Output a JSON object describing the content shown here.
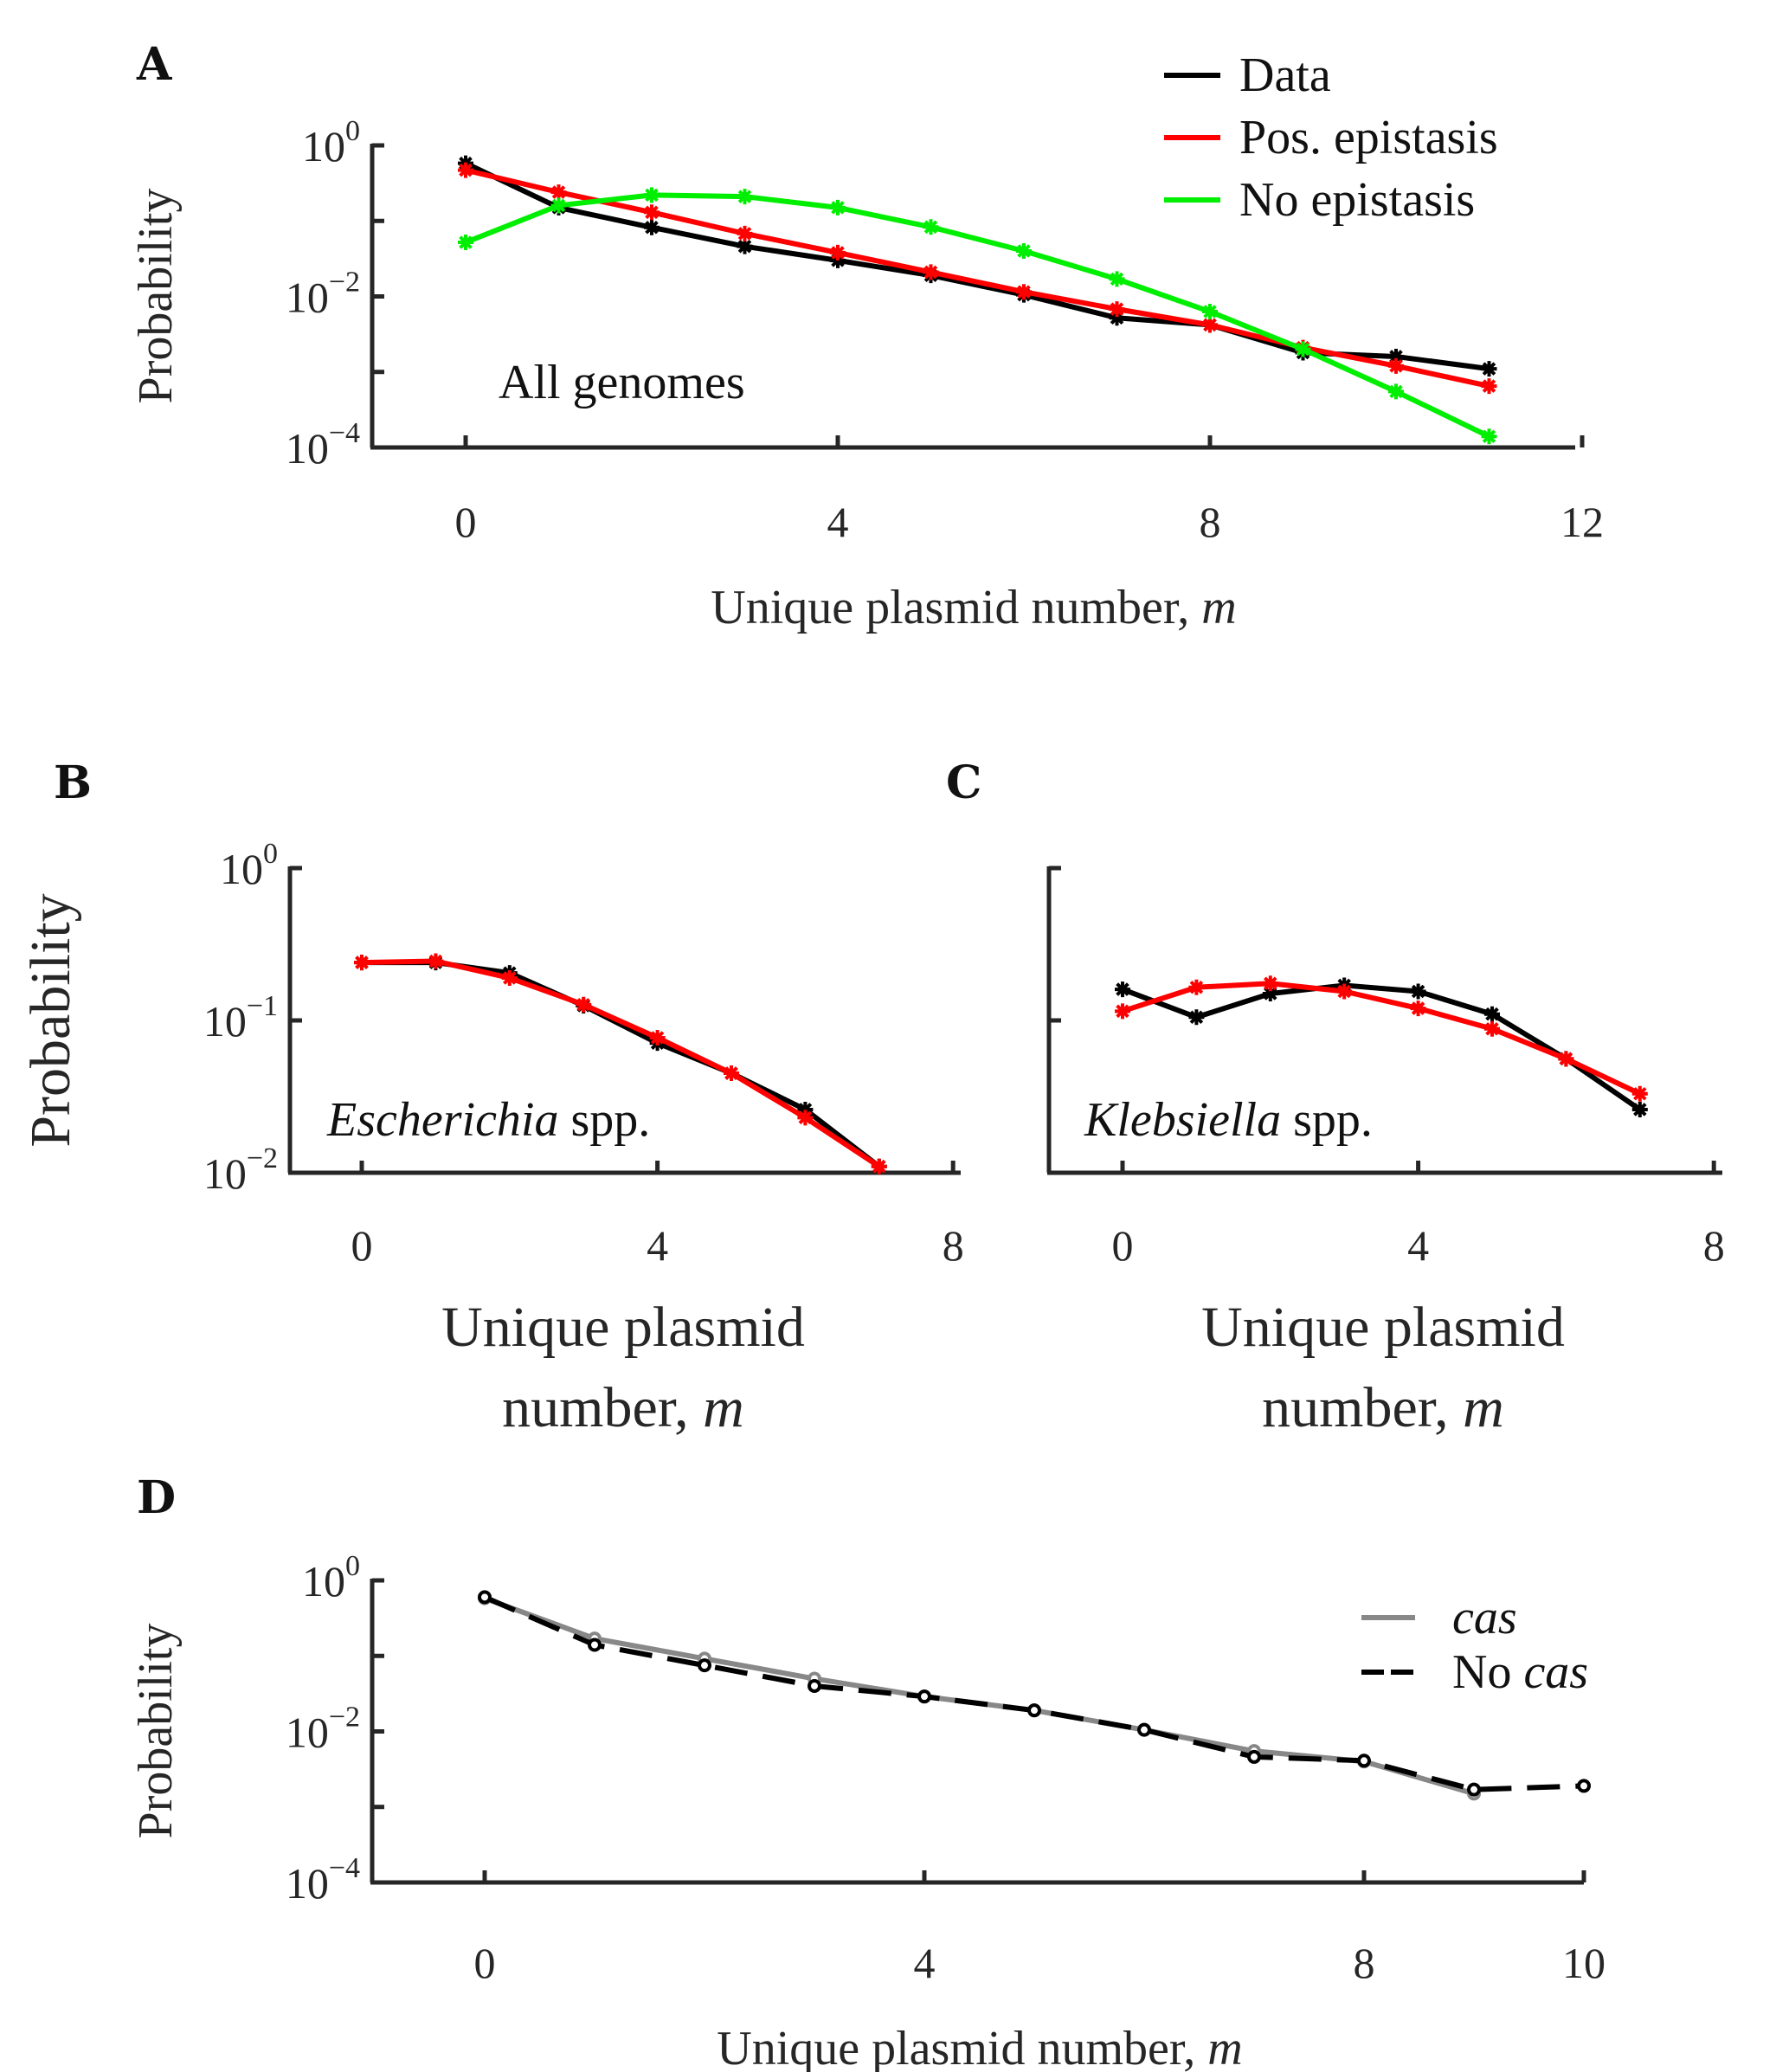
{
  "chart_data": [
    {
      "panel": "A",
      "type": "line",
      "yscale": "log",
      "ylim": [
        0.0001,
        1
      ],
      "xlim": [
        -1,
        12
      ],
      "xticks": [
        "0",
        "4",
        "8",
        "12"
      ],
      "yticks": [
        {
          "base": "10",
          "exp": "0"
        },
        {
          "base": "10",
          "exp": "−2"
        },
        {
          "base": "10",
          "exp": "−4"
        }
      ],
      "xlabel": "Unique plasmid number, ",
      "xlabel_var": "m",
      "ylabel": "Probability",
      "annotation": "All genomes",
      "legend_position": "top-right",
      "legend": [
        "Data",
        "Pos. epistasis",
        "No epistasis"
      ],
      "x": [
        0,
        1,
        2,
        3,
        4,
        5,
        6,
        7,
        8,
        9,
        10,
        11
      ],
      "series": [
        {
          "name": "Data",
          "color": "#000000",
          "values": [
            0.58,
            0.15,
            0.082,
            0.046,
            0.03,
            0.019,
            0.0105,
            0.0052,
            0.0042,
            0.0018,
            0.0016,
            0.0011
          ]
        },
        {
          "name": "Pos. epistasis",
          "color": "#ff0000",
          "values": [
            0.47,
            0.24,
            0.13,
            0.068,
            0.038,
            0.021,
            0.0115,
            0.0068,
            0.0042,
            0.0021,
            0.0012,
            0.00065
          ]
        },
        {
          "name": "No epistasis",
          "color": "#00ee00",
          "values": [
            0.052,
            0.16,
            0.22,
            0.21,
            0.15,
            0.083,
            0.04,
            0.017,
            0.0063,
            0.002,
            0.00055,
            0.00014
          ]
        }
      ]
    },
    {
      "panel": "B",
      "type": "line",
      "yscale": "log",
      "ylim": [
        0.01,
        1
      ],
      "xlim": [
        -1,
        8
      ],
      "xticks": [
        "0",
        "4",
        "8"
      ],
      "yticks": [
        {
          "base": "10",
          "exp": "0"
        },
        {
          "base": "10",
          "exp": "−1"
        },
        {
          "base": "10",
          "exp": "−2"
        }
      ],
      "xlabel_line1": "Unique plasmid",
      "xlabel_line2": "number, ",
      "xlabel_var": "m",
      "ylabel": "Probability",
      "annotation_italic": "Escherichia",
      "annotation_rest": " spp.",
      "x": [
        0,
        1,
        2,
        3,
        4,
        5,
        6,
        7
      ],
      "series": [
        {
          "color": "#000000",
          "values": [
            0.24,
            0.24,
            0.205,
            0.125,
            0.071,
            0.045,
            0.026,
            0.011
          ]
        },
        {
          "color": "#ff0000",
          "values": [
            0.24,
            0.245,
            0.19,
            0.127,
            0.077,
            0.045,
            0.023,
            0.011
          ]
        }
      ]
    },
    {
      "panel": "C",
      "type": "line",
      "yscale": "log",
      "ylim": [
        0.01,
        1
      ],
      "xlim": [
        -1,
        8
      ],
      "xticks": [
        "0",
        "4",
        "8"
      ],
      "xlabel_line1": "Unique plasmid",
      "xlabel_line2": "number, ",
      "xlabel_var": "m",
      "annotation_italic": "Klebsiella",
      "annotation_rest": " spp.",
      "x": [
        0,
        1,
        2,
        3,
        4,
        5,
        6,
        7
      ],
      "series": [
        {
          "color": "#000000",
          "values": [
            0.16,
            0.105,
            0.15,
            0.17,
            0.155,
            0.11,
            0.056,
            0.026
          ]
        },
        {
          "color": "#ff0000",
          "values": [
            0.115,
            0.165,
            0.175,
            0.155,
            0.12,
            0.088,
            0.056,
            0.033
          ]
        }
      ]
    },
    {
      "panel": "D",
      "type": "line",
      "yscale": "log",
      "ylim": [
        0.0001,
        1
      ],
      "xlim": [
        -1,
        10
      ],
      "xticks": [
        "0",
        "4",
        "8",
        "10"
      ],
      "xtick_values": [
        0,
        4,
        8,
        10
      ],
      "yticks": [
        {
          "base": "10",
          "exp": "0"
        },
        {
          "base": "10",
          "exp": "−2"
        },
        {
          "base": "10",
          "exp": "−4"
        }
      ],
      "xlabel": "Unique plasmid number, ",
      "xlabel_var": "m",
      "ylabel": "Probability",
      "legend_position": "right",
      "series": [
        {
          "name_italic": "cas",
          "name_prefix": "",
          "color": "#888888",
          "dashed": false,
          "x": [
            0,
            1,
            2,
            3,
            4,
            5,
            6,
            7,
            8,
            9
          ],
          "values": [
            0.58,
            0.17,
            0.092,
            0.05,
            0.029,
            0.019,
            0.0105,
            0.0055,
            0.004,
            0.0015
          ]
        },
        {
          "name_italic": "cas",
          "name_prefix": "No ",
          "color": "#000000",
          "dashed": true,
          "x": [
            0,
            1,
            2,
            3,
            4,
            5,
            6,
            7,
            8,
            9,
            10
          ],
          "values": [
            0.6,
            0.14,
            0.075,
            0.04,
            0.029,
            0.019,
            0.0105,
            0.0046,
            0.0041,
            0.0017,
            0.0019
          ]
        }
      ]
    }
  ],
  "panel_labels": [
    "A",
    "B",
    "C",
    "D"
  ]
}
